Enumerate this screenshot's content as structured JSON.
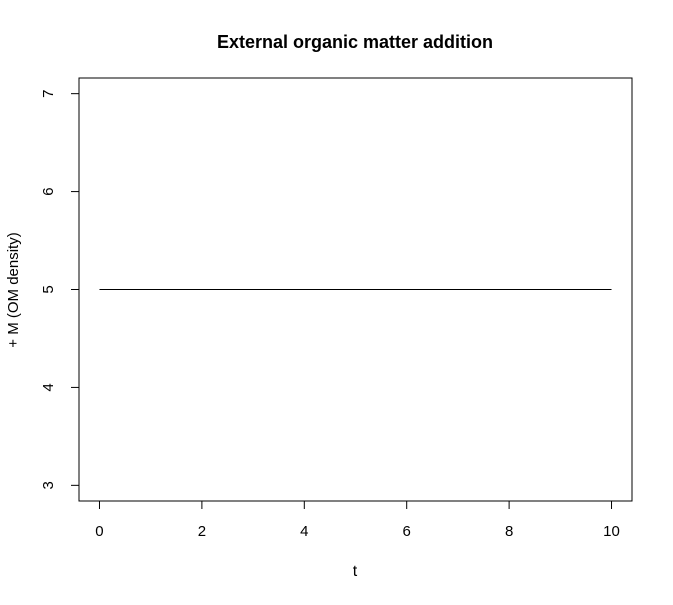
{
  "chart_data": {
    "type": "line",
    "title": "External organic matter addition",
    "xlabel": "t",
    "ylabel": "+ M (OM density)",
    "xlim": [
      -0.4,
      10.4
    ],
    "ylim": [
      2.84,
      7.16
    ],
    "x_ticks": [
      0,
      2,
      4,
      6,
      8,
      10
    ],
    "y_ticks": [
      3,
      4,
      5,
      6,
      7
    ],
    "grid": false,
    "legend": "none",
    "series": [
      {
        "x": [
          0,
          10
        ],
        "y": [
          5,
          5
        ],
        "color": "#000000"
      }
    ]
  }
}
